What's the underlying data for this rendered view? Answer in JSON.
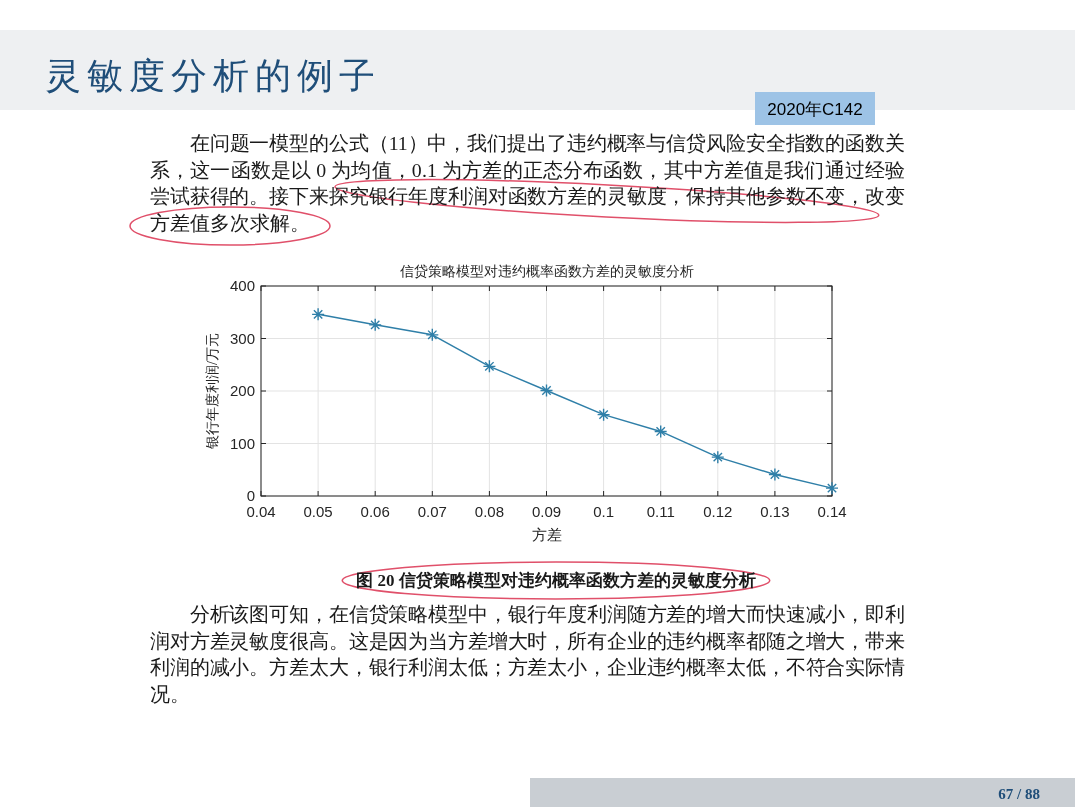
{
  "chart_data": {
    "type": "line",
    "title": "信贷策略模型对违约概率函数方差的灵敏度分析",
    "xlabel": "方差",
    "ylabel": "银行年度利润/万元",
    "x": [
      0.05,
      0.06,
      0.07,
      0.08,
      0.09,
      0.1,
      0.11,
      0.12,
      0.13,
      0.14
    ],
    "values": [
      346,
      326,
      307,
      247,
      201,
      155,
      123,
      74,
      41,
      15
    ],
    "color": "#2f7fa8",
    "marker": "cross",
    "grid": true,
    "xlim": [
      0.04,
      0.14
    ],
    "ylim": [
      0,
      400
    ],
    "xticks": [
      0.04,
      0.05,
      0.06,
      0.07,
      0.08,
      0.09,
      0.1,
      0.11,
      0.12,
      0.13,
      0.14
    ],
    "yticks": [
      0,
      100,
      200,
      300,
      400
    ],
    "annotations": [
      "灵敏度分析的例子",
      "2020年C142",
      "在问题一模型的公式（11）中，我们提出了违约概率与信贷风险安全指数的函数关系，这一函数是以 0 为均值，0.1 为方差的正态分布函数，其中方差值是我们通过经验尝试获得的。接下来探究银行年度利润对函数方差的灵敏度，保持其他参数不变，改变方差值多次求解。",
      "图 20 信贷策略模型对违约概率函数方差的灵敏度分析",
      "分析该图可知，在信贷策略模型中，银行年度利润随方差的增大而快速减小，即利润对方差灵敏度很高。这是因为当方差增大时，所有企业的违约概率都随之增大，带来利润的减小。方差太大，银行利润太低；方差太小，企业违约概率太低，不符合实际情况。",
      "67 / 88"
    ]
  }
}
